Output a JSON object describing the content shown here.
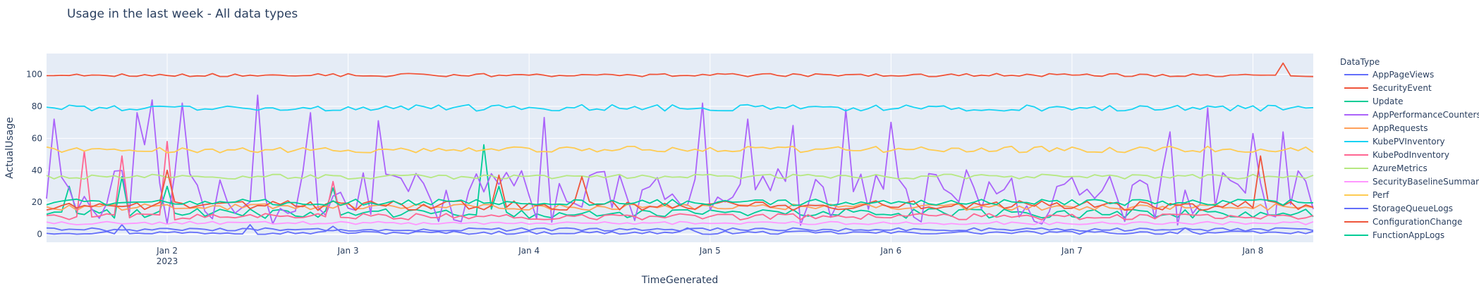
{
  "chart_data": {
    "type": "line",
    "title": "Usage in the last week - All data types",
    "xlabel": "TimeGenerated",
    "ylabel": "ActualUsage",
    "x_range": [
      "2023-01-01T08:00",
      "2023-01-08T08:00"
    ],
    "ylim": [
      -5,
      113
    ],
    "y_ticks": [
      0,
      20,
      40,
      60,
      80,
      100
    ],
    "x_ticks": [
      "2023-01-02",
      "2023-01-03",
      "2023-01-04",
      "2023-01-05",
      "2023-01-06",
      "2023-01-07",
      "2023-01-08"
    ],
    "x_tick_labels": [
      "Jan 2",
      "Jan 3",
      "Jan 4",
      "Jan 5",
      "Jan 6",
      "Jan 7",
      "Jan 8"
    ],
    "x_tick_year": "2023",
    "grid": true,
    "legend_title": "DataType",
    "legend_position": "right",
    "sampling": "hourly",
    "series": [
      {
        "name": "AppPageViews",
        "color": "#636efa",
        "base": 1,
        "noise": 1,
        "spikes": [
          [
            "2023-01-01T18:00",
            6
          ],
          [
            "2023-01-02T11:00",
            6
          ],
          [
            "2023-01-02T22:00",
            5
          ],
          [
            "2023-01-04T21:00",
            4
          ],
          [
            "2023-01-07T15:00",
            4
          ]
        ]
      },
      {
        "name": "SecurityEvent",
        "color": "#ef553b",
        "base": 99.5,
        "noise": 1,
        "spikes": [
          [
            "2023-01-08T04:00",
            107
          ]
        ]
      },
      {
        "name": "Update",
        "color": "#00cc96",
        "base": 13,
        "noise": 3,
        "spikes": [
          [
            "2023-01-01T11:00",
            30
          ],
          [
            "2023-01-01T18:00",
            36
          ],
          [
            "2023-01-02T00:00",
            30
          ],
          [
            "2023-01-02T22:00",
            29
          ],
          [
            "2023-01-03T18:00",
            56
          ],
          [
            "2023-01-03T20:00",
            30
          ]
        ]
      },
      {
        "name": "AppPerformanceCounters",
        "color": "#ab63fa",
        "base": 23,
        "noise": 18,
        "spikes": [
          [
            "2023-01-01T09:00",
            72
          ],
          [
            "2023-01-01T15:00",
            10
          ],
          [
            "2023-01-01T20:00",
            76
          ],
          [
            "2023-01-01T21:00",
            56
          ],
          [
            "2023-01-01T22:00",
            84
          ],
          [
            "2023-01-02T02:00",
            82
          ],
          [
            "2023-01-02T12:00",
            87
          ],
          [
            "2023-01-02T19:00",
            76
          ],
          [
            "2023-01-03T04:00",
            71
          ],
          [
            "2023-01-04T02:00",
            73
          ],
          [
            "2023-01-04T23:00",
            82
          ],
          [
            "2023-01-05T05:00",
            72
          ],
          [
            "2023-01-05T11:00",
            68
          ],
          [
            "2023-01-05T18:00",
            78
          ],
          [
            "2023-01-06T00:00",
            70
          ],
          [
            "2023-01-07T13:00",
            64
          ],
          [
            "2023-01-07T18:00",
            79
          ],
          [
            "2023-01-08T00:00",
            63
          ],
          [
            "2023-01-08T04:00",
            64
          ]
        ]
      },
      {
        "name": "AppRequests",
        "color": "#ffa15a",
        "base": 17,
        "noise": 2,
        "spikes": []
      },
      {
        "name": "KubePVInventory",
        "color": "#19d3f3",
        "base": 79,
        "noise": 2,
        "spikes": []
      },
      {
        "name": "KubePodInventory",
        "color": "#ff6692",
        "base": 11,
        "noise": 2,
        "spikes": [
          [
            "2023-01-01T13:00",
            52
          ],
          [
            "2023-01-01T18:00",
            49
          ],
          [
            "2023-01-02T00:00",
            58
          ],
          [
            "2023-01-02T22:00",
            33
          ]
        ]
      },
      {
        "name": "AzureMetrics",
        "color": "#b6e880",
        "base": 36,
        "noise": 1.5,
        "spikes": []
      },
      {
        "name": "SecurityBaselineSummary",
        "color": "#ff97ff",
        "base": 7,
        "noise": 1,
        "spikes": []
      },
      {
        "name": "Perf",
        "color": "#fecb52",
        "base": 53,
        "noise": 2,
        "spikes": []
      },
      {
        "name": "StorageQueueLogs",
        "color": "#636efa",
        "base": 3,
        "noise": 1,
        "spikes": []
      },
      {
        "name": "ConfigurationChange",
        "color": "#ef553b",
        "base": 18,
        "noise": 3,
        "spikes": [
          [
            "2023-01-02T00:00",
            40
          ],
          [
            "2023-01-03T20:00",
            37
          ],
          [
            "2023-01-04T07:00",
            36
          ],
          [
            "2023-01-08T01:00",
            49
          ]
        ]
      },
      {
        "name": "FunctionAppLogs",
        "color": "#00cc96",
        "base": 20,
        "noise": 2,
        "spikes": []
      }
    ]
  }
}
